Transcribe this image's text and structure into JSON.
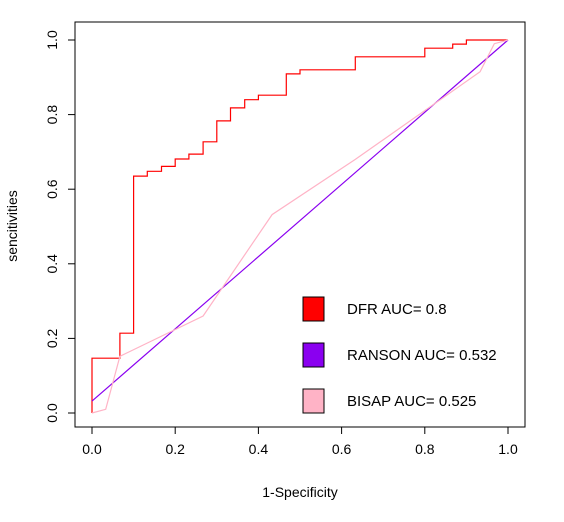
{
  "chart_data": {
    "type": "line",
    "title": "",
    "xlabel": "1-Specificity",
    "ylabel": "sencitivities",
    "xlim": [
      0,
      1
    ],
    "ylim": [
      0,
      1
    ],
    "x_ticks": [
      "0.0",
      "0.2",
      "0.4",
      "0.6",
      "0.8",
      "1.0"
    ],
    "y_ticks": [
      "0.0",
      "0.2",
      "0.4",
      "0.6",
      "0.8",
      "1.0"
    ],
    "grid": false,
    "legend_position": "bottom-right",
    "series": [
      {
        "name": "DFR AUC= 0.8",
        "color": "#ff0000",
        "x": [
          0.0,
          0.0,
          0.067,
          0.067,
          0.1,
          0.1,
          0.133,
          0.133,
          0.167,
          0.167,
          0.2,
          0.2,
          0.233,
          0.233,
          0.267,
          0.267,
          0.3,
          0.3,
          0.333,
          0.333,
          0.367,
          0.367,
          0.4,
          0.4,
          0.467,
          0.467,
          0.5,
          0.5,
          0.633,
          0.633,
          0.8,
          0.8,
          0.867,
          0.867,
          0.9,
          0.9,
          0.967,
          0.967,
          1.0
        ],
        "y": [
          0.0,
          0.147,
          0.147,
          0.214,
          0.214,
          0.635,
          0.635,
          0.648,
          0.648,
          0.661,
          0.661,
          0.681,
          0.681,
          0.694,
          0.694,
          0.727,
          0.727,
          0.783,
          0.783,
          0.818,
          0.818,
          0.84,
          0.84,
          0.852,
          0.852,
          0.909,
          0.909,
          0.92,
          0.92,
          0.955,
          0.955,
          0.978,
          0.978,
          0.989,
          0.989,
          1.0,
          1.0,
          1.0,
          1.0
        ]
      },
      {
        "name": "RANSON AUC= 0.532",
        "color": "#8a00f0",
        "x": [
          0.0,
          1.0
        ],
        "y": [
          0.032,
          1.0
        ]
      },
      {
        "name": "BISAP AUC= 0.525",
        "color": "#ffb3c6",
        "x": [
          0.0,
          0.033,
          0.067,
          0.267,
          0.433,
          0.633,
          0.933,
          0.967,
          1.0
        ],
        "y": [
          0.0,
          0.01,
          0.152,
          0.26,
          0.532,
          0.68,
          0.915,
          0.99,
          1.0
        ]
      }
    ]
  }
}
